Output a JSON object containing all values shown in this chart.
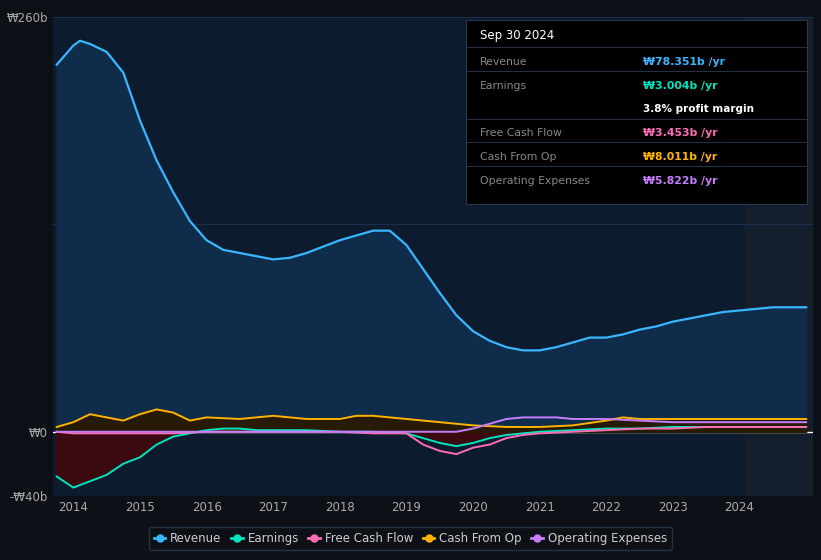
{
  "background_color": "#0d1117",
  "plot_bg_color": "#0d1b2e",
  "grid_color": "#1e3050",
  "zero_line_color": "#ffffff",
  "ylim": [
    -40,
    260
  ],
  "xlim": [
    2013.7,
    2025.1
  ],
  "yticks": [
    -40,
    0,
    260
  ],
  "ytick_labels": [
    "-₩40b",
    "₩0",
    "₩260b"
  ],
  "xticks": [
    2014,
    2015,
    2016,
    2017,
    2018,
    2019,
    2020,
    2021,
    2022,
    2023,
    2024
  ],
  "shaded_x_start": 2024.08,
  "shaded_color": "#151e2d",
  "revenue_color": "#38b6ff",
  "revenue_fill": "#0f2d4a",
  "earnings_color": "#00e5c0",
  "earnings_fill_pos": "#003830",
  "earnings_fill_neg": "#3a0a10",
  "fcf_color": "#ff6db6",
  "cop_color": "#ffb300",
  "cop_fill": "#2a1a00",
  "opex_color": "#c77dff",
  "revenue_x": [
    2013.75,
    2014.0,
    2014.1,
    2014.25,
    2014.5,
    2014.75,
    2015.0,
    2015.25,
    2015.5,
    2015.75,
    2016.0,
    2016.25,
    2016.5,
    2016.75,
    2017.0,
    2017.25,
    2017.5,
    2017.75,
    2018.0,
    2018.25,
    2018.5,
    2018.75,
    2019.0,
    2019.25,
    2019.5,
    2019.75,
    2020.0,
    2020.25,
    2020.5,
    2020.75,
    2021.0,
    2021.25,
    2021.5,
    2021.75,
    2022.0,
    2022.25,
    2022.5,
    2022.75,
    2023.0,
    2023.25,
    2023.5,
    2023.75,
    2024.0,
    2024.25,
    2024.5,
    2024.75,
    2025.0
  ],
  "revenue_y": [
    230,
    242,
    245,
    243,
    238,
    225,
    195,
    170,
    150,
    132,
    120,
    114,
    112,
    110,
    108,
    109,
    112,
    116,
    120,
    123,
    126,
    126,
    117,
    102,
    87,
    73,
    63,
    57,
    53,
    51,
    51,
    53,
    56,
    59,
    59,
    61,
    64,
    66,
    69,
    71,
    73,
    75,
    76,
    77,
    78,
    78,
    78
  ],
  "earnings_x": [
    2013.75,
    2014.0,
    2014.25,
    2014.5,
    2014.75,
    2015.0,
    2015.25,
    2015.5,
    2015.75,
    2016.0,
    2016.25,
    2016.5,
    2016.75,
    2017.0,
    2017.5,
    2018.0,
    2018.5,
    2019.0,
    2019.25,
    2019.5,
    2019.75,
    2020.0,
    2020.25,
    2020.5,
    2020.75,
    2021.0,
    2021.5,
    2022.0,
    2022.5,
    2023.0,
    2023.5,
    2024.0,
    2024.5,
    2025.0
  ],
  "earnings_y": [
    -28,
    -35,
    -31,
    -27,
    -20,
    -16,
    -8,
    -3,
    -1,
    1,
    2,
    2,
    1,
    1,
    1,
    0,
    0,
    -1,
    -4,
    -7,
    -9,
    -7,
    -4,
    -2,
    -1,
    0,
    1,
    2,
    2,
    3,
    3,
    3,
    3,
    3
  ],
  "fcf_x": [
    2013.75,
    2014.0,
    2014.5,
    2015.0,
    2015.5,
    2016.0,
    2016.5,
    2017.0,
    2017.5,
    2018.0,
    2018.5,
    2019.0,
    2019.25,
    2019.5,
    2019.75,
    2020.0,
    2020.25,
    2020.5,
    2020.75,
    2021.0,
    2021.5,
    2022.0,
    2022.5,
    2023.0,
    2023.5,
    2024.0,
    2024.5,
    2025.0
  ],
  "fcf_y": [
    0,
    -1,
    -1,
    -1,
    -1,
    0,
    0,
    0,
    0,
    0,
    -1,
    -1,
    -8,
    -12,
    -14,
    -10,
    -8,
    -4,
    -2,
    -1,
    0,
    1,
    2,
    2,
    3,
    3,
    3,
    3
  ],
  "cop_x": [
    2013.75,
    2014.0,
    2014.25,
    2014.5,
    2014.75,
    2015.0,
    2015.25,
    2015.5,
    2015.75,
    2016.0,
    2016.5,
    2017.0,
    2017.5,
    2018.0,
    2018.25,
    2018.5,
    2019.0,
    2019.5,
    2020.0,
    2020.5,
    2021.0,
    2021.5,
    2022.0,
    2022.25,
    2022.5,
    2023.0,
    2023.5,
    2024.0,
    2024.5,
    2025.0
  ],
  "cop_y": [
    3,
    6,
    11,
    9,
    7,
    11,
    14,
    12,
    7,
    9,
    8,
    10,
    8,
    8,
    10,
    10,
    8,
    6,
    4,
    3,
    3,
    4,
    7,
    9,
    8,
    8,
    8,
    8,
    8,
    8
  ],
  "opex_x": [
    2013.75,
    2014.0,
    2014.5,
    2015.0,
    2015.5,
    2016.0,
    2016.5,
    2017.0,
    2017.5,
    2018.0,
    2018.5,
    2019.0,
    2019.5,
    2019.75,
    2020.0,
    2020.25,
    2020.5,
    2020.75,
    2021.0,
    2021.25,
    2021.5,
    2022.0,
    2022.5,
    2023.0,
    2023.5,
    2024.0,
    2024.5,
    2025.0
  ],
  "opex_y": [
    0,
    0,
    0,
    0,
    0,
    0,
    0,
    0,
    0,
    0,
    0,
    0,
    0,
    0,
    2,
    5,
    8,
    9,
    9,
    9,
    8,
    8,
    7,
    6,
    6,
    6,
    6,
    6
  ],
  "legend": [
    {
      "label": "Revenue",
      "color": "#38b6ff"
    },
    {
      "label": "Earnings",
      "color": "#00e5c0"
    },
    {
      "label": "Free Cash Flow",
      "color": "#ff6db6"
    },
    {
      "label": "Cash From Op",
      "color": "#ffb300"
    },
    {
      "label": "Operating Expenses",
      "color": "#c77dff"
    }
  ],
  "info_box": {
    "date": "Sep 30 2024",
    "rows": [
      {
        "label": "Revenue",
        "value": "₩78.351b /yr",
        "color": "#38b6ff",
        "sub": null
      },
      {
        "label": "Earnings",
        "value": "₩3.004b /yr",
        "color": "#00e5c0",
        "sub": "3.8% profit margin"
      },
      {
        "label": "Free Cash Flow",
        "value": "₩3.453b /yr",
        "color": "#ff6db6",
        "sub": null
      },
      {
        "label": "Cash From Op",
        "value": "₩8.011b /yr",
        "color": "#ffb300",
        "sub": null
      },
      {
        "label": "Operating Expenses",
        "value": "₩5.822b /yr",
        "color": "#c77dff",
        "sub": null
      }
    ],
    "bg": "#000000",
    "label_color": "#888888",
    "border_color": "#2a3a50"
  }
}
